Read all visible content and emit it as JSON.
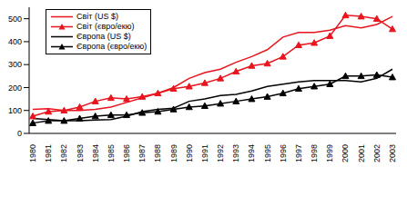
{
  "chart_data": {
    "type": "line",
    "categories": [
      "1980",
      "1981",
      "1982",
      "1983",
      "1984",
      "1985",
      "1986",
      "1987",
      "1988",
      "1989",
      "1990",
      "1991",
      "1992",
      "1993",
      "1994",
      "1995",
      "1996",
      "1997",
      "1998",
      "1999",
      "2000",
      "2001",
      "2002",
      "2003"
    ],
    "series": [
      {
        "name": "Світ (US $)",
        "color": "#e8141e",
        "marker": "none",
        "values": [
          105,
          108,
          100,
          100,
          105,
          115,
          135,
          155,
          175,
          200,
          240,
          265,
          280,
          310,
          335,
          365,
          420,
          440,
          440,
          450,
          470,
          460,
          475,
          510
        ]
      },
      {
        "name": "Світ (євро/екю)",
        "color": "#e8141e",
        "marker": "triangle",
        "values": [
          75,
          95,
          100,
          115,
          140,
          155,
          150,
          160,
          175,
          195,
          205,
          220,
          240,
          270,
          295,
          305,
          335,
          385,
          395,
          425,
          515,
          510,
          500,
          455
        ]
      },
      {
        "name": "Європа (US $)",
        "color": "#000000",
        "marker": "none",
        "values": [
          65,
          60,
          55,
          55,
          58,
          60,
          75,
          95,
          105,
          110,
          140,
          150,
          165,
          170,
          185,
          205,
          215,
          225,
          230,
          230,
          230,
          225,
          240,
          280
        ]
      },
      {
        "name": "Європа (євро/екю)",
        "color": "#000000",
        "marker": "triangle",
        "values": [
          45,
          55,
          55,
          65,
          75,
          80,
          80,
          90,
          95,
          105,
          115,
          120,
          130,
          140,
          150,
          160,
          175,
          195,
          205,
          215,
          250,
          250,
          255,
          245
        ]
      }
    ],
    "ylim": [
      0,
      550
    ],
    "yticks": [
      0,
      100,
      200,
      300,
      400,
      500
    ],
    "grid": false,
    "legend": "upper left"
  }
}
